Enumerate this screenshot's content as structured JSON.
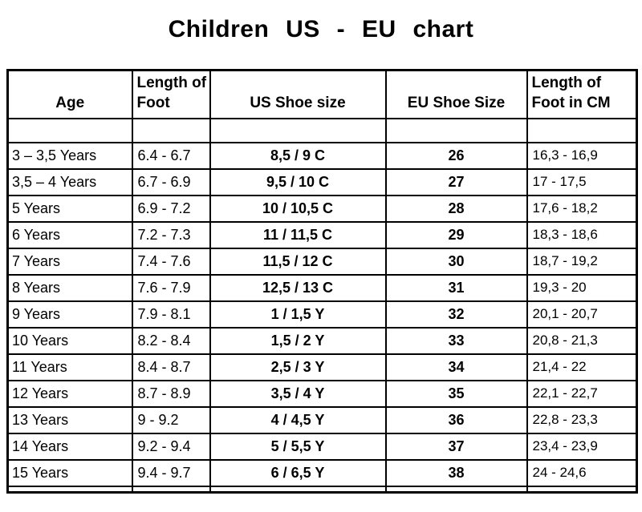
{
  "title": "Children US - EU chart",
  "chart_data": {
    "type": "table",
    "title": "Children US - EU chart",
    "columns": [
      "Age",
      "Length of Foot",
      "US Shoe size",
      "EU Shoe Size",
      "Length of Foot in CM"
    ],
    "rows": [
      [
        "3 – 3,5 Years",
        "6.4 - 6.7",
        "8,5 / 9 C",
        "26",
        "16,3 - 16,9"
      ],
      [
        "3,5 – 4 Years",
        "6.7 - 6.9",
        "9,5 / 10 C",
        "27",
        "17 - 17,5"
      ],
      [
        "5 Years",
        "6.9 - 7.2",
        "10 / 10,5 C",
        "28",
        "17,6 - 18,2"
      ],
      [
        "6 Years",
        "7.2 - 7.3",
        "11 / 11,5 C",
        "29",
        "18,3 - 18,6"
      ],
      [
        "7 Years",
        "7.4 - 7.6",
        "11,5 / 12 C",
        "30",
        "18,7 - 19,2"
      ],
      [
        "8 Years",
        "7.6 - 7.9",
        "12,5 / 13 C",
        "31",
        "19,3 - 20"
      ],
      [
        "9 Years",
        "7.9 - 8.1",
        "1 / 1,5 Y",
        "32",
        "20,1 - 20,7"
      ],
      [
        "10 Years",
        "8.2 - 8.4",
        "1,5 / 2 Y",
        "33",
        "20,8 - 21,3"
      ],
      [
        "11 Years",
        "8.4 - 8.7",
        "2,5 / 3 Y",
        "34",
        "21,4 - 22"
      ],
      [
        "12 Years",
        "8.7 - 8.9",
        "3,5 / 4 Y",
        "35",
        "22,1 - 22,7"
      ],
      [
        "13 Years",
        "9 - 9.2",
        "4 / 4,5 Y",
        "36",
        "22,8 - 23,3"
      ],
      [
        "14 Years",
        "9.2 - 9.4",
        "5 / 5,5 Y",
        "37",
        "23,4 - 23,9"
      ],
      [
        "15 Years",
        "9.4 - 9.7",
        "6 / 6,5 Y",
        "38",
        "24 - 24,6"
      ]
    ],
    "colors": {
      "border": "#000000",
      "text": "#000000",
      "background": "#ffffff"
    }
  }
}
